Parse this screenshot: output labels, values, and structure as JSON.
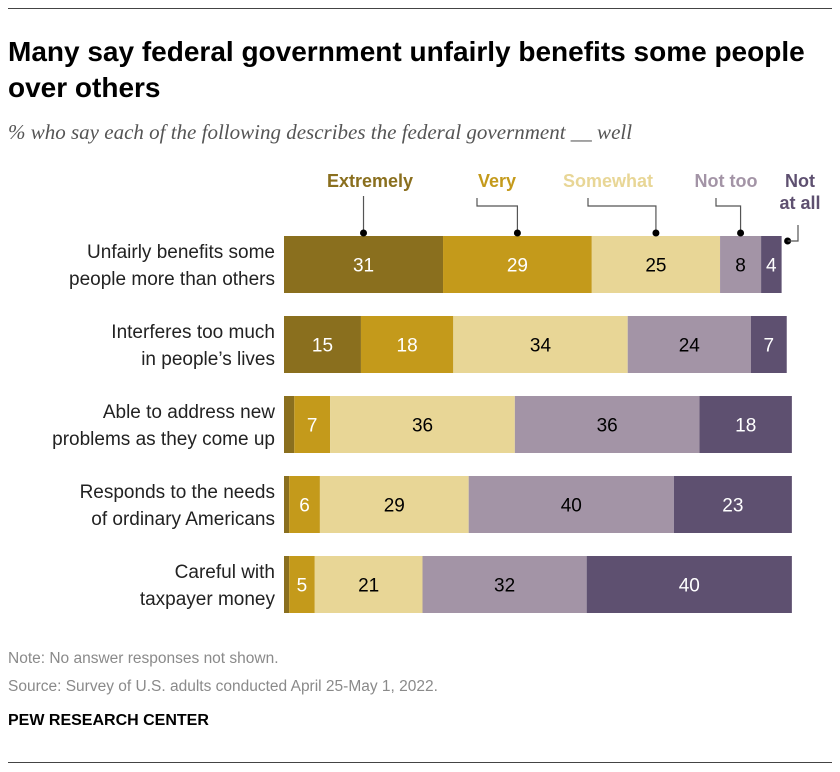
{
  "chart_data": {
    "type": "bar",
    "orientation": "horizontal",
    "stacked": true,
    "title": "Many say federal government unfairly benefits some people over others",
    "subtitle": "% who say each of the following describes the federal government __ well",
    "categories": [
      [
        "Unfairly benefits some",
        "people more than others"
      ],
      [
        "Interferes too much",
        "in people’s lives"
      ],
      [
        "Able to address new",
        "problems as they come up"
      ],
      [
        "Responds to the needs",
        "of ordinary Americans"
      ],
      [
        "Careful with",
        "taxpayer money"
      ]
    ],
    "series": [
      {
        "name": "Extremely",
        "color": "#8a6f1e",
        "label_color": "#8a6f1e",
        "text_color": "#ffffff",
        "values": [
          31,
          15,
          2,
          1,
          1
        ],
        "labels": [
          "31",
          "15",
          "",
          "",
          ""
        ]
      },
      {
        "name": "Very",
        "color": "#c49a1b",
        "label_color": "#c49a1b",
        "text_color": "#ffffff",
        "values": [
          29,
          18,
          7,
          6,
          5
        ],
        "labels": [
          "29",
          "18",
          "7",
          "6",
          "5"
        ]
      },
      {
        "name": "Somewhat",
        "color": "#e8d696",
        "label_color": "#e8d696",
        "text_color": "#000000",
        "values": [
          25,
          34,
          36,
          29,
          21
        ],
        "labels": [
          "25",
          "34",
          "36",
          "29",
          "21"
        ]
      },
      {
        "name": "Not too",
        "color": "#a394a6",
        "label_color": "#a394a6",
        "text_color": "#000000",
        "values": [
          8,
          24,
          36,
          40,
          32
        ],
        "labels": [
          "8",
          "24",
          "36",
          "40",
          "32"
        ]
      },
      {
        "name": "Not at all",
        "color": "#5e5070",
        "label_color": "#5e5070",
        "text_color": "#ffffff",
        "values": [
          4,
          7,
          18,
          23,
          40
        ],
        "labels": [
          "4",
          "7",
          "18",
          "23",
          "40"
        ]
      }
    ],
    "legend_placement": "top, labels above first bar",
    "grid": false
  },
  "footer": {
    "note": "Note: No answer responses not shown.",
    "source": "Source: Survey of U.S. adults conducted April 25-May 1, 2022.",
    "brand": "PEW RESEARCH CENTER"
  }
}
